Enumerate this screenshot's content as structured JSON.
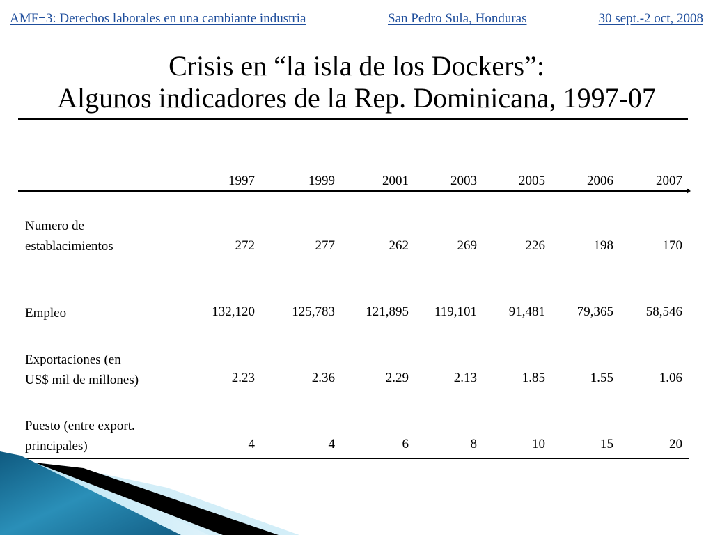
{
  "header": {
    "event": "AMF+3: Derechos laborales en una cambiante industria",
    "place": "San Pedro Sula, Honduras",
    "dates": "30 sept.-2 oct, 2008"
  },
  "title": {
    "line1": "Crisis en “la isla de los Dockers”:",
    "line2": "Algunos indicadores de la Rep. Dominicana, 1997-07"
  },
  "table": {
    "years": [
      "1997",
      "1999",
      "2001",
      "2003",
      "2005",
      "2006",
      "2007"
    ],
    "rows": [
      {
        "label_line1": "Numero de",
        "label_line2": "establacimientos",
        "label_unit": "",
        "values": [
          "272",
          "277",
          "262",
          "269",
          "226",
          "198",
          "170"
        ]
      },
      {
        "label_line1": "Empleo",
        "label_line2": "",
        "label_unit": "",
        "values": [
          "132,120",
          "125,783",
          "121,895",
          "119,101",
          "91,481",
          "79,365",
          "58,546"
        ]
      },
      {
        "label_line1": "Exportaciones",
        "label_unit1": "(en",
        "label_line2": "US$ mil de millones)",
        "values": [
          "2.23",
          "2.36",
          "2.29",
          "2.13",
          "1.85",
          "1.55",
          "1.06"
        ]
      },
      {
        "label_line1": "Puesto",
        "label_unit1": "(entre export.",
        "label_line2": "principales)",
        "values": [
          "4",
          "4",
          "6",
          "8",
          "10",
          "15",
          "20"
        ]
      }
    ]
  },
  "colors": {
    "header_text": "#1f4e9c",
    "ribbon_dark": "#1a6f96",
    "ribbon_light": "#a9dcef",
    "ribbon_black": "#000000"
  }
}
